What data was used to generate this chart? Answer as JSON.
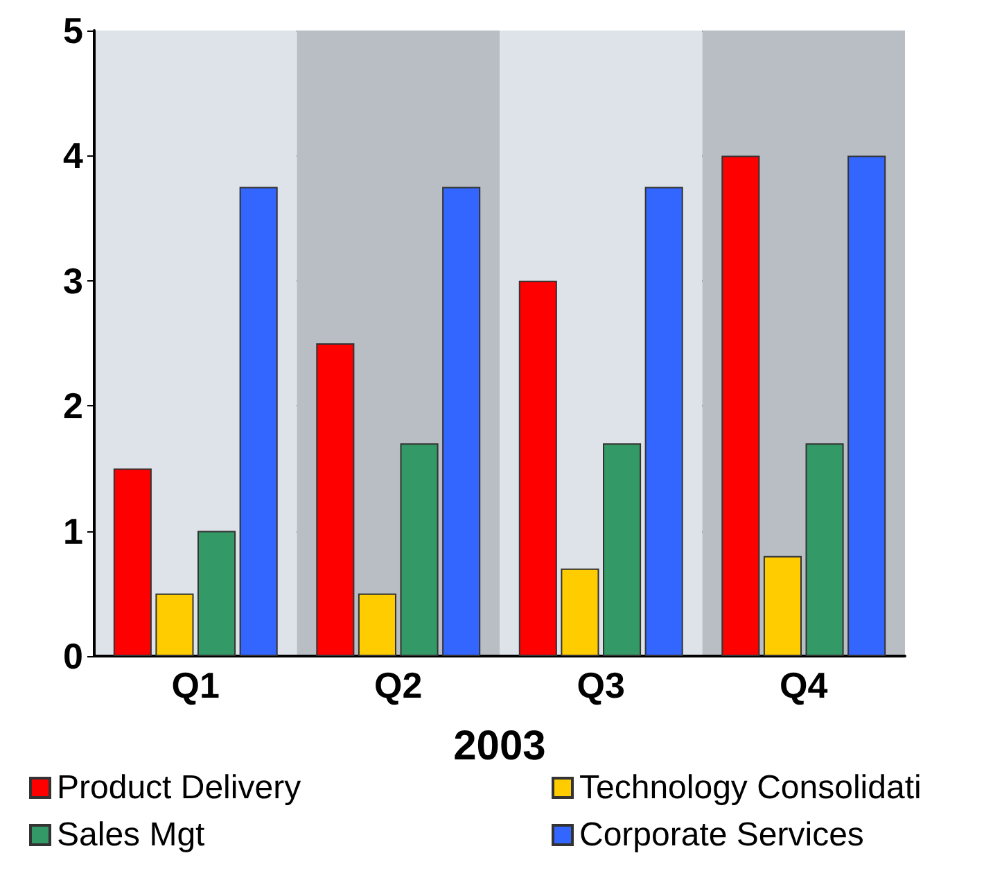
{
  "chart_data": {
    "type": "bar",
    "xlabel": "2003",
    "categories": [
      "Q1",
      "Q2",
      "Q3",
      "Q4"
    ],
    "series": [
      {
        "name": "Product Delivery",
        "color": "#ff0000",
        "values": [
          1.5,
          2.5,
          3.0,
          4.0
        ]
      },
      {
        "name": "Technology Consolidati",
        "color": "#ffcc00",
        "values": [
          0.5,
          0.5,
          0.7,
          0.8
        ]
      },
      {
        "name": "Sales Mgt",
        "color": "#339966",
        "values": [
          1.0,
          1.7,
          1.7,
          1.7
        ]
      },
      {
        "name": "Corporate Services",
        "color": "#3366ff",
        "values": [
          3.75,
          3.75,
          3.75,
          4.0
        ]
      }
    ],
    "ylim": [
      0,
      5
    ],
    "yticks": [
      0,
      1,
      2,
      3,
      4,
      5
    ],
    "grid": "y",
    "legend": "bottom"
  }
}
